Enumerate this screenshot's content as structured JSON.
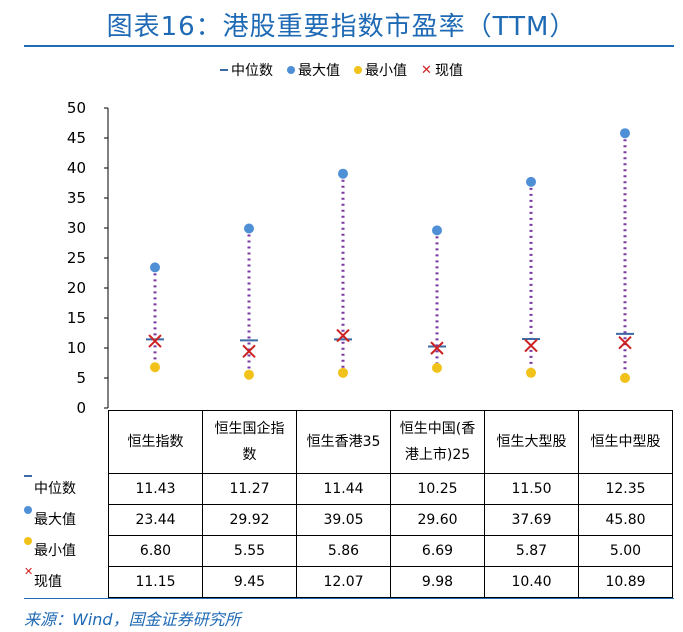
{
  "title": "图表16：港股重要指数市盈率（TTM）",
  "source": "来源：Wind，国金证券研究所",
  "legend": [
    {
      "key": "median",
      "label": "中位数"
    },
    {
      "key": "max",
      "label": "最大值"
    },
    {
      "key": "min",
      "label": "最小值"
    },
    {
      "key": "current",
      "label": "现值"
    }
  ],
  "colors": {
    "median": "#3b6aa5",
    "max": "#4f8fd6",
    "min": "#f0c21a",
    "current": "#cc2222",
    "range_line": "#7a3aa0",
    "title": "#1f6ab5"
  },
  "chart_data": {
    "type": "scatter",
    "ylim": [
      0,
      50
    ],
    "yticks": [
      "0",
      "5",
      "10",
      "15",
      "20",
      "25",
      "30",
      "35",
      "40",
      "45",
      "50"
    ],
    "categories": [
      "恒生指数",
      "恒生国企指数",
      "恒生香港35",
      "恒生中国(香港上市)25",
      "恒生大型股",
      "恒生中型股"
    ],
    "category_lines": [
      [
        "恒生指数"
      ],
      [
        "恒生国企指",
        "数"
      ],
      [
        "恒生香港35"
      ],
      [
        "恒生中国(香",
        "港上市)25"
      ],
      [
        "恒生大型股"
      ],
      [
        "恒生中型股"
      ]
    ],
    "series": [
      {
        "key": "median",
        "name": "中位数",
        "values": [
          11.43,
          11.27,
          11.44,
          10.25,
          11.5,
          12.35
        ],
        "labels": [
          "11.43",
          "11.27",
          "11.44",
          "10.25",
          "11.50",
          "12.35"
        ]
      },
      {
        "key": "max",
        "name": "最大值",
        "values": [
          23.44,
          29.92,
          39.05,
          29.6,
          37.69,
          45.8
        ],
        "labels": [
          "23.44",
          "29.92",
          "39.05",
          "29.60",
          "37.69",
          "45.80"
        ]
      },
      {
        "key": "min",
        "name": "最小值",
        "values": [
          6.8,
          5.55,
          5.86,
          6.69,
          5.87,
          5.0
        ],
        "labels": [
          "6.80",
          "5.55",
          "5.86",
          "6.69",
          "5.87",
          "5.00"
        ]
      },
      {
        "key": "current",
        "name": "现值",
        "values": [
          11.15,
          9.45,
          12.07,
          9.98,
          10.4,
          10.89
        ],
        "labels": [
          "11.15",
          "9.45",
          "12.07",
          "9.98",
          "10.40",
          "10.89"
        ]
      }
    ]
  }
}
